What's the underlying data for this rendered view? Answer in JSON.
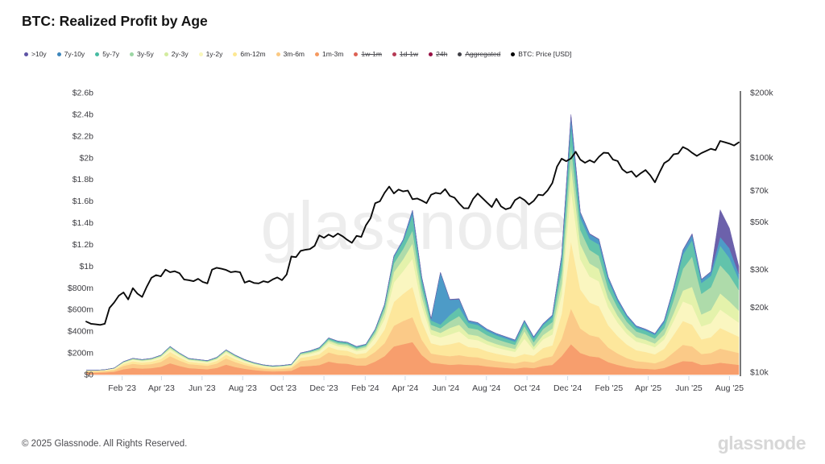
{
  "header": {
    "title": "BTC: Realized Profit by Age"
  },
  "legend": {
    "items": [
      {
        "label": ">10y",
        "color": "#5e54a5",
        "struck": false
      },
      {
        "label": "7y-10y",
        "color": "#3d86bb",
        "struck": false
      },
      {
        "label": "5y-7y",
        "color": "#47bba2",
        "struck": false
      },
      {
        "label": "3y-5y",
        "color": "#9cd6a4",
        "struck": false
      },
      {
        "label": "2y-3y",
        "color": "#d3ec9f",
        "struck": false
      },
      {
        "label": "1y-2y",
        "color": "#f9f7bb",
        "struck": false
      },
      {
        "label": "6m-12m",
        "color": "#fde892",
        "struck": false
      },
      {
        "label": "3m-6m",
        "color": "#fbc983",
        "struck": false
      },
      {
        "label": "1m-3m",
        "color": "#f59960",
        "struck": false
      },
      {
        "label": "1w-1m",
        "color": "#dd6154",
        "struck": true
      },
      {
        "label": "1d-1w",
        "color": "#b63a54",
        "struck": true
      },
      {
        "label": "24h",
        "color": "#971044",
        "struck": true
      },
      {
        "label": "Aggregated",
        "color": "#3f3f46",
        "struck": true
      },
      {
        "label": "BTC: Price [USD]",
        "color": "#000000",
        "struck": false
      }
    ]
  },
  "watermark_text": "glassnode",
  "footer": {
    "copyright": "© 2025 Glassnode. All Rights Reserved.",
    "brand": "glassnode"
  },
  "chart_data": {
    "type": "area",
    "stacked": true,
    "title": "BTC: Realized Profit by Age",
    "background": "#ffffff",
    "grid": "off",
    "legend_position": "top",
    "x_axis": {
      "start_date": "2022-12-08",
      "end_date": "2025-08-15",
      "tick_labels": [
        {
          "label": "Feb '23",
          "day": 54
        },
        {
          "label": "Apr '23",
          "day": 113
        },
        {
          "label": "Jun '23",
          "day": 174
        },
        {
          "label": "Aug '23",
          "day": 235
        },
        {
          "label": "Oct '23",
          "day": 296
        },
        {
          "label": "Dec '23",
          "day": 357
        },
        {
          "label": "Feb '24",
          "day": 419
        },
        {
          "label": "Apr '24",
          "day": 479
        },
        {
          "label": "Jun '24",
          "day": 540
        },
        {
          "label": "Aug '24",
          "day": 601
        },
        {
          "label": "Oct '24",
          "day": 662
        },
        {
          "label": "Dec '24",
          "day": 723
        },
        {
          "label": "Feb '25",
          "day": 785
        },
        {
          "label": "Apr '25",
          "day": 844
        },
        {
          "label": "Jun '25",
          "day": 905
        },
        {
          "label": "Aug '25",
          "day": 966
        }
      ]
    },
    "left_axis": {
      "scale": "linear",
      "unit": "USD realized profit",
      "ylim_m": [
        0,
        2600
      ],
      "ticks": [
        {
          "label": "$0",
          "value_m": 0
        },
        {
          "label": "$200m",
          "value_m": 200
        },
        {
          "label": "$400m",
          "value_m": 400
        },
        {
          "label": "$600m",
          "value_m": 600
        },
        {
          "label": "$800m",
          "value_m": 800
        },
        {
          "label": "$1b",
          "value_m": 1000
        },
        {
          "label": "$1.2b",
          "value_m": 1200
        },
        {
          "label": "$1.4b",
          "value_m": 1400
        },
        {
          "label": "$1.6b",
          "value_m": 1600
        },
        {
          "label": "$1.8b",
          "value_m": 1800
        },
        {
          "label": "$2b",
          "value_m": 2000
        },
        {
          "label": "$2.2b",
          "value_m": 2200
        },
        {
          "label": "$2.4b",
          "value_m": 2400
        },
        {
          "label": "$2.6b",
          "value_m": 2600
        }
      ]
    },
    "right_axis": {
      "scale": "log",
      "unit": "BTC price USD",
      "ylim_k": [
        10,
        200
      ],
      "ticks": [
        {
          "label": "$10k",
          "value_k": 10
        },
        {
          "label": "$20k",
          "value_k": 20
        },
        {
          "label": "$30k",
          "value_k": 30
        },
        {
          "label": "$50k",
          "value_k": 50
        },
        {
          "label": "$70k",
          "value_k": 70
        },
        {
          "label": "$100k",
          "value_k": 100
        },
        {
          "label": "$200k",
          "value_k": 200
        }
      ]
    },
    "step_days": 14,
    "series": [
      {
        "name": "1m-3m",
        "color": "#f79e6d",
        "values_m": [
          18,
          18,
          20,
          26,
          50,
          62,
          56,
          60,
          72,
          105,
          80,
          60,
          55,
          50,
          62,
          92,
          70,
          54,
          42,
          34,
          30,
          32,
          36,
          75,
          80,
          88,
          120,
          105,
          100,
          85,
          85,
          120,
          170,
          260,
          280,
          300,
          180,
          110,
          100,
          90,
          95,
          90,
          88,
          76,
          68,
          62,
          56,
          66,
          60,
          80,
          90,
          170,
          280,
          200,
          170,
          160,
          115,
          90,
          70,
          58,
          54,
          48,
          62,
          95,
          125,
          120,
          90,
          95,
          110,
          100,
          90
        ]
      },
      {
        "name": "3m-6m",
        "color": "#fbca88",
        "values_m": [
          10,
          10,
          11,
          15,
          30,
          38,
          35,
          37,
          45,
          65,
          50,
          37,
          35,
          32,
          40,
          57,
          45,
          35,
          27,
          22,
          20,
          21,
          24,
          50,
          55,
          62,
          85,
          77,
          75,
          65,
          70,
          90,
          120,
          190,
          215,
          230,
          140,
          85,
          80,
          80,
          85,
          75,
          72,
          63,
          57,
          52,
          48,
          57,
          52,
          70,
          80,
          160,
          330,
          225,
          195,
          185,
          135,
          105,
          82,
          67,
          63,
          57,
          72,
          110,
          150,
          140,
          100,
          105,
          130,
          120,
          110
        ]
      },
      {
        "name": "6m-12m",
        "color": "#fde79c",
        "values_m": [
          6,
          6,
          7,
          9,
          18,
          23,
          21,
          23,
          27,
          39,
          30,
          22,
          21,
          20,
          24,
          35,
          27,
          21,
          17,
          14,
          12,
          13,
          14,
          30,
          33,
          38,
          51,
          47,
          45,
          39,
          45,
          75,
          125,
          220,
          250,
          280,
          170,
          95,
          88,
          110,
          120,
          90,
          86,
          76,
          68,
          63,
          58,
          68,
          63,
          95,
          100,
          230,
          620,
          360,
          300,
          285,
          205,
          160,
          125,
          100,
          92,
          82,
          105,
          160,
          220,
          200,
          135,
          145,
          190,
          170,
          150
        ]
      },
      {
        "name": "1y-2y",
        "color": "#faf6c0",
        "values_m": [
          3,
          3,
          4,
          5,
          10,
          13,
          12,
          13,
          16,
          23,
          18,
          13,
          12,
          11,
          14,
          20,
          16,
          12,
          10,
          8,
          7,
          8,
          9,
          20,
          22,
          26,
          36,
          33,
          32,
          28,
          35,
          60,
          100,
          180,
          210,
          260,
          150,
          80,
          75,
          90,
          100,
          75,
          72,
          63,
          57,
          52,
          48,
          140,
          52,
          80,
          100,
          180,
          480,
          280,
          240,
          230,
          165,
          125,
          98,
          80,
          74,
          66,
          85,
          130,
          180,
          180,
          120,
          130,
          170,
          150,
          130
        ]
      },
      {
        "name": "2y-3y",
        "color": "#e4f2ab",
        "values_m": [
          2,
          2,
          2,
          3,
          6,
          7,
          7,
          8,
          9,
          13,
          10,
          8,
          7,
          7,
          8,
          12,
          9,
          7,
          6,
          5,
          4,
          4,
          5,
          11,
          12,
          14,
          19,
          17,
          17,
          15,
          18,
          30,
          55,
          95,
          110,
          140,
          80,
          45,
          42,
          60,
          60,
          42,
          40,
          35,
          32,
          29,
          27,
          70,
          29,
          40,
          55,
          95,
          230,
          140,
          120,
          115,
          82,
          63,
          50,
          41,
          38,
          34,
          44,
          70,
          100,
          170,
          110,
          120,
          150,
          135,
          110
        ]
      },
      {
        "name": "3y-5y",
        "color": "#aedbaa",
        "values_m": [
          1,
          1,
          1,
          2,
          4,
          5,
          5,
          5,
          6,
          9,
          7,
          5,
          5,
          5,
          6,
          8,
          7,
          5,
          4,
          3,
          3,
          3,
          3,
          8,
          9,
          10,
          14,
          13,
          13,
          11,
          14,
          25,
          45,
          80,
          95,
          120,
          80,
          45,
          42,
          60,
          80,
          60,
          58,
          50,
          46,
          42,
          38,
          46,
          42,
          55,
          60,
          120,
          180,
          130,
          125,
          120,
          90,
          75,
          62,
          52,
          50,
          45,
          60,
          120,
          200,
          280,
          190,
          210,
          260,
          240,
          190
        ]
      },
      {
        "name": "5y-7y",
        "color": "#62c3ab",
        "values_m": [
          0,
          0,
          0,
          0,
          1,
          1,
          2,
          2,
          3,
          4,
          3,
          3,
          3,
          3,
          4,
          4,
          4,
          4,
          3,
          3,
          3,
          3,
          3,
          4,
          6,
          8,
          10,
          13,
          13,
          12,
          10,
          15,
          25,
          55,
          70,
          140,
          70,
          40,
          35,
          60,
          80,
          45,
          42,
          38,
          34,
          32,
          29,
          36,
          34,
          35,
          45,
          100,
          180,
          110,
          100,
          105,
          75,
          55,
          45,
          36,
          34,
          33,
          48,
          85,
          130,
          150,
          100,
          105,
          180,
          160,
          100
        ]
      },
      {
        "name": "7y-10y",
        "color": "#4d9bc7",
        "values_m": [
          0,
          0,
          0,
          0,
          1,
          1,
          1,
          1,
          1,
          2,
          1,
          1,
          1,
          1,
          1,
          1,
          1,
          1,
          1,
          1,
          1,
          1,
          1,
          2,
          2,
          3,
          4,
          4,
          4,
          4,
          3,
          4,
          8,
          15,
          15,
          45,
          25,
          15,
          480,
          140,
          75,
          20,
          20,
          17,
          16,
          16,
          14,
          16,
          16,
          13,
          17,
          40,
          80,
          50,
          45,
          45,
          30,
          25,
          16,
          14,
          13,
          13,
          22,
          28,
          40,
          50,
          30,
          35,
          80,
          90,
          50
        ]
      },
      {
        "name": ">10y",
        "color": "#6c61ab",
        "values_m": [
          0,
          0,
          0,
          0,
          0,
          0,
          0,
          0,
          0,
          0,
          0,
          0,
          0,
          0,
          0,
          0,
          0,
          0,
          0,
          0,
          0,
          0,
          0,
          0,
          0,
          0,
          0,
          0,
          0,
          0,
          0,
          0,
          0,
          0,
          0,
          0,
          0,
          0,
          0,
          5,
          5,
          2,
          2,
          2,
          2,
          2,
          2,
          2,
          2,
          2,
          3,
          5,
          20,
          5,
          5,
          5,
          3,
          2,
          2,
          2,
          2,
          2,
          2,
          2,
          5,
          10,
          5,
          5,
          250,
          185,
          70
        ]
      }
    ],
    "price_line": {
      "name": "BTC: Price [USD]",
      "color": "#0a0a0a",
      "step_days": 7,
      "values_usd_k": [
        17.2,
        16.8,
        16.7,
        16.6,
        16.8,
        19.9,
        21.1,
        22.7,
        23.5,
        21.8,
        24.6,
        23.2,
        22.4,
        25.0,
        27.5,
        28.3,
        27.9,
        30.0,
        29.2,
        29.5,
        28.9,
        27.0,
        26.8,
        26.5,
        27.2,
        26.3,
        25.9,
        30.0,
        30.6,
        30.3,
        29.9,
        29.2,
        29.4,
        29.2,
        26.1,
        26.6,
        26.0,
        25.9,
        26.5,
        26.2,
        27.0,
        27.6,
        26.8,
        28.5,
        34.5,
        34.3,
        36.7,
        37.1,
        37.4,
        38.7,
        43.3,
        42.2,
        43.7,
        42.6,
        44.2,
        42.9,
        41.3,
        40.0,
        43.1,
        42.6,
        48.2,
        52.0,
        61.2,
        62.4,
        68.3,
        73.1,
        67.9,
        70.8,
        69.4,
        70.0,
        63.8,
        64.3,
        62.9,
        61.2,
        66.9,
        68.3,
        67.7,
        71.1,
        66.2,
        64.9,
        61.0,
        58.0,
        57.9,
        64.0,
        67.8,
        64.6,
        61.5,
        58.7,
        64.1,
        59.1,
        57.3,
        58.2,
        63.2,
        65.2,
        63.3,
        60.3,
        62.7,
        67.0,
        66.6,
        70.2,
        76.0,
        90.5,
        98.5,
        95.9,
        98.8,
        106.1,
        97.5,
        94.3,
        96.9,
        94.6,
        100.5,
        105.0,
        104.7,
        97.6,
        96.1,
        88.0,
        84.7,
        86.1,
        81.1,
        84.4,
        87.2,
        82.5,
        76.5,
        85.0,
        93.9,
        97.0,
        103.2,
        104.1,
        111.7,
        109.0,
        104.9,
        101.5,
        104.7,
        107.0,
        109.6,
        108.0,
        119.1,
        117.5,
        115.8,
        113.5,
        117.4
      ]
    }
  }
}
